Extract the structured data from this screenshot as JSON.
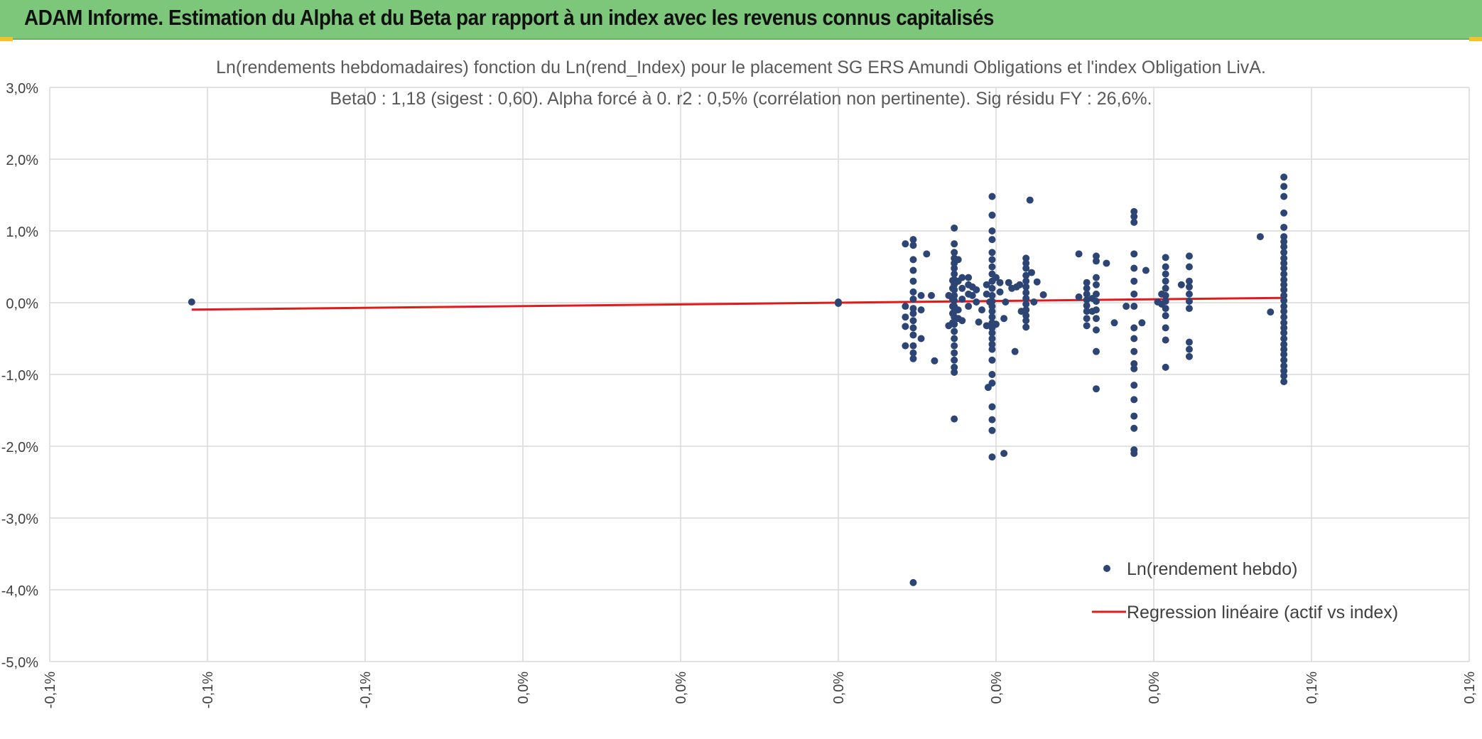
{
  "header": {
    "title": "ADAM Informe. Estimation du Alpha et du Beta par rapport à un index avec les revenus connus capitalisés"
  },
  "colors": {
    "header_bg": "#7dc77b",
    "point": "#2d4575",
    "regression": "#e01b1b",
    "grid": "#d9d9d9",
    "corner_accent": "#f2c230"
  },
  "chart_data": {
    "type": "scatter",
    "title": "Ln(rendements hebdomadaires) fonction du Ln(rend_Index) pour le placement SG ERS Amundi Obligations et l'index Obligation LivA.",
    "subtitle": "Beta0 : 1,18 (sigest : 0,60). Alpha forcé à 0. r2 : 0,5% (corrélation non pertinente). Sig résidu FY : 26,6%.",
    "xlabel": "",
    "ylabel": "",
    "xlim": [
      -0.001,
      0.0008
    ],
    "ylim": [
      -0.05,
      0.03
    ],
    "grid": true,
    "legend_position": "bottom-right",
    "x_tick_values": [
      -0.001,
      -0.0008,
      -0.0006,
      -0.0004,
      -0.0002,
      0.0,
      0.0002,
      0.0004,
      0.0006,
      0.0008
    ],
    "x_tick_labels": [
      "-0,1%",
      "-0,1%",
      "-0,1%",
      "0,0%",
      "0,0%",
      "0,0%",
      "0,0%",
      "0,0%",
      "0,1%",
      "0,1%"
    ],
    "y_tick_values": [
      0.03,
      0.02,
      0.01,
      0.0,
      -0.01,
      -0.02,
      -0.03,
      -0.04,
      -0.05
    ],
    "y_tick_labels": [
      "3,0%",
      "2,0%",
      "1,0%",
      "0,0%",
      "-1,0%",
      "-2,0%",
      "-3,0%",
      "-4,0%",
      "-5,0%"
    ],
    "series": [
      {
        "name": "Ln(rendement hebdo)",
        "kind": "points",
        "points": [
          [
            -0.00082,
            0.0001
          ],
          [
            0.0,
            0.0001
          ],
          [
            0.0,
            0.0
          ],
          [
            0.0,
            -0.0001
          ],
          [
            9.5e-05,
            0.008
          ],
          [
            9.5e-05,
            0.0088
          ],
          [
            9.5e-05,
            0.006
          ],
          [
            9.5e-05,
            0.0045
          ],
          [
            9.5e-05,
            0.003
          ],
          [
            9.5e-05,
            0.0015
          ],
          [
            9.5e-05,
            0.0005
          ],
          [
            9.5e-05,
            -0.0008
          ],
          [
            9.5e-05,
            -0.0015
          ],
          [
            9.5e-05,
            -0.0025
          ],
          [
            9.5e-05,
            -0.0035
          ],
          [
            9.5e-05,
            -0.0045
          ],
          [
            9.5e-05,
            -0.006
          ],
          [
            9.5e-05,
            -0.007
          ],
          [
            9.5e-05,
            -0.0078
          ],
          [
            9.5e-05,
            -0.039
          ],
          [
            8.5e-05,
            0.0082
          ],
          [
            8.5e-05,
            -0.0005
          ],
          [
            8.5e-05,
            -0.002
          ],
          [
            8.5e-05,
            -0.0033
          ],
          [
            8.5e-05,
            -0.006
          ],
          [
            0.000105,
            0.001
          ],
          [
            0.000105,
            -0.001
          ],
          [
            0.000105,
            -0.005
          ],
          [
            0.000112,
            0.0068
          ],
          [
            0.000118,
            0.001
          ],
          [
            0.000122,
            -0.0081
          ],
          [
            0.000145,
            0.0031
          ],
          [
            0.000145,
            0.002
          ],
          [
            0.000145,
            0.0005
          ],
          [
            0.000145,
            -0.0005
          ],
          [
            0.000145,
            -0.0015
          ],
          [
            0.000145,
            -0.0028
          ],
          [
            0.00014,
            0.001
          ],
          [
            0.00014,
            -0.0032
          ],
          [
            0.000147,
            0.0104
          ],
          [
            0.000147,
            0.0082
          ],
          [
            0.000147,
            0.007
          ],
          [
            0.000147,
            0.0062
          ],
          [
            0.000147,
            0.0055
          ],
          [
            0.000147,
            0.0048
          ],
          [
            0.000147,
            0.004
          ],
          [
            0.000147,
            0.0032
          ],
          [
            0.000147,
            0.0025
          ],
          [
            0.000147,
            0.0018
          ],
          [
            0.000147,
            0.001
          ],
          [
            0.000147,
            0.0003
          ],
          [
            0.000147,
            -0.0005
          ],
          [
            0.000147,
            -0.0012
          ],
          [
            0.000147,
            -0.002
          ],
          [
            0.000147,
            -0.003
          ],
          [
            0.000147,
            -0.004
          ],
          [
            0.000147,
            -0.005
          ],
          [
            0.000147,
            -0.006
          ],
          [
            0.000147,
            -0.007
          ],
          [
            0.000147,
            -0.008
          ],
          [
            0.000147,
            -0.009
          ],
          [
            0.000147,
            -0.0097
          ],
          [
            0.000147,
            -0.0162
          ],
          [
            0.000152,
            0.006
          ],
          [
            0.000152,
            0.003
          ],
          [
            0.000152,
            -0.001
          ],
          [
            0.000152,
            -0.0022
          ],
          [
            0.000157,
            0.0035
          ],
          [
            0.000157,
            0.002
          ],
          [
            0.000157,
            0.0005
          ],
          [
            0.000157,
            -0.0025
          ],
          [
            0.000165,
            0.0035
          ],
          [
            0.000165,
            0.0025
          ],
          [
            0.000165,
            0.0012
          ],
          [
            0.000165,
            -0.0005
          ],
          [
            0.00017,
            0.0022
          ],
          [
            0.00017,
            0.001
          ],
          [
            0.000175,
            0.0018
          ],
          [
            0.000175,
            0.0001
          ],
          [
            0.000178,
            -0.0027
          ],
          [
            0.000182,
            -0.001
          ],
          [
            0.000188,
            0.0025
          ],
          [
            0.000188,
            0.0012
          ],
          [
            0.000188,
            -0.0032
          ],
          [
            0.000192,
            0.0001
          ],
          [
            0.000195,
            0.0148
          ],
          [
            0.000195,
            0.0122
          ],
          [
            0.000195,
            0.01
          ],
          [
            0.000195,
            0.0088
          ],
          [
            0.000195,
            0.007
          ],
          [
            0.000195,
            0.006
          ],
          [
            0.000195,
            0.005
          ],
          [
            0.000195,
            0.004
          ],
          [
            0.000195,
            0.003
          ],
          [
            0.000195,
            0.002
          ],
          [
            0.000195,
            0.001
          ],
          [
            0.000195,
            0.0002
          ],
          [
            0.000195,
            -0.0005
          ],
          [
            0.000195,
            -0.0012
          ],
          [
            0.000195,
            -0.002
          ],
          [
            0.000195,
            -0.0028
          ],
          [
            0.000195,
            -0.0035
          ],
          [
            0.000195,
            -0.0042
          ],
          [
            0.000195,
            -0.005
          ],
          [
            0.000195,
            -0.0058
          ],
          [
            0.000195,
            -0.0065
          ],
          [
            0.000195,
            -0.008
          ],
          [
            0.000195,
            -0.01
          ],
          [
            0.000195,
            -0.0112
          ],
          [
            0.000195,
            -0.0145
          ],
          [
            0.000195,
            -0.0163
          ],
          [
            0.000195,
            -0.0178
          ],
          [
            0.000195,
            -0.0215
          ],
          [
            0.00019,
            -0.0118
          ],
          [
            0.0002,
            0.0035
          ],
          [
            0.0002,
            -0.003
          ],
          [
            0.000205,
            0.0028
          ],
          [
            0.000205,
            0.0015
          ],
          [
            0.00021,
            -0.021
          ],
          [
            0.00021,
            -0.0022
          ],
          [
            0.000212,
            0.0001
          ],
          [
            0.000216,
            0.0028
          ],
          [
            0.00022,
            0.002
          ],
          [
            0.000224,
            -0.0068
          ],
          [
            0.000226,
            0.0022
          ],
          [
            0.00023,
            0.0025
          ],
          [
            0.000232,
            -0.0012
          ],
          [
            0.000238,
            0.0062
          ],
          [
            0.000238,
            0.0055
          ],
          [
            0.000238,
            0.0048
          ],
          [
            0.000238,
            0.0038
          ],
          [
            0.000238,
            0.003
          ],
          [
            0.000238,
            0.0022
          ],
          [
            0.000238,
            0.0014
          ],
          [
            0.000238,
            0.0006
          ],
          [
            0.000238,
            -0.0002
          ],
          [
            0.000238,
            -0.001
          ],
          [
            0.000238,
            -0.0018
          ],
          [
            0.000238,
            -0.0025
          ],
          [
            0.000238,
            -0.0034
          ],
          [
            0.000238,
            -0.001
          ],
          [
            0.000243,
            0.0143
          ],
          [
            0.000245,
            0.0042
          ],
          [
            0.000248,
            0.0001
          ],
          [
            0.000252,
            0.0029
          ],
          [
            0.00026,
            0.0011
          ],
          [
            0.000305,
            0.0068
          ],
          [
            0.000305,
            0.0008
          ],
          [
            0.000315,
            0.0028
          ],
          [
            0.000315,
            0.002
          ],
          [
            0.000315,
            0.0012
          ],
          [
            0.000315,
            0.0004
          ],
          [
            0.000315,
            -0.0004
          ],
          [
            0.000315,
            -0.0012
          ],
          [
            0.000315,
            -0.0022
          ],
          [
            0.000315,
            -0.0032
          ],
          [
            0.000322,
            0.0006
          ],
          [
            0.000322,
            -0.0012
          ],
          [
            0.000327,
            0.0065
          ],
          [
            0.000327,
            0.0058
          ],
          [
            0.000327,
            0.0035
          ],
          [
            0.000327,
            0.0025
          ],
          [
            0.000327,
            0.0012
          ],
          [
            0.000327,
            0.0002
          ],
          [
            0.000327,
            -0.001
          ],
          [
            0.000327,
            -0.0022
          ],
          [
            0.000327,
            -0.0038
          ],
          [
            0.000327,
            -0.0068
          ],
          [
            0.000327,
            -0.012
          ],
          [
            0.00034,
            0.0055
          ],
          [
            0.00035,
            -0.0028
          ],
          [
            0.000365,
            -0.0005
          ],
          [
            0.000375,
            0.0127
          ],
          [
            0.000375,
            0.012
          ],
          [
            0.000375,
            0.0112
          ],
          [
            0.000375,
            0.0068
          ],
          [
            0.000375,
            0.0048
          ],
          [
            0.000375,
            0.003
          ],
          [
            0.000375,
            0.0012
          ],
          [
            0.000375,
            -0.0005
          ],
          [
            0.000375,
            -0.0035
          ],
          [
            0.000375,
            -0.005
          ],
          [
            0.000375,
            -0.0068
          ],
          [
            0.000375,
            -0.0085
          ],
          [
            0.000375,
            -0.0092
          ],
          [
            0.000375,
            -0.0115
          ],
          [
            0.000375,
            -0.0135
          ],
          [
            0.000375,
            -0.0158
          ],
          [
            0.000375,
            -0.0175
          ],
          [
            0.000375,
            -0.0205
          ],
          [
            0.000375,
            -0.021
          ],
          [
            0.000385,
            -0.0028
          ],
          [
            0.00039,
            0.0045
          ],
          [
            0.000405,
            0.0001
          ],
          [
            0.000415,
            0.0063
          ],
          [
            0.000415,
            0.005
          ],
          [
            0.000415,
            0.004
          ],
          [
            0.000415,
            0.003
          ],
          [
            0.000415,
            0.002
          ],
          [
            0.000415,
            0.001
          ],
          [
            0.000415,
            0.0002
          ],
          [
            0.000415,
            -0.0008
          ],
          [
            0.000415,
            -0.0018
          ],
          [
            0.000415,
            -0.0035
          ],
          [
            0.000415,
            -0.0052
          ],
          [
            0.000415,
            -0.009
          ],
          [
            0.00041,
            0.0012
          ],
          [
            0.00041,
            -0.0002
          ],
          [
            0.000435,
            0.0025
          ],
          [
            0.000445,
            0.0065
          ],
          [
            0.000445,
            0.005
          ],
          [
            0.000445,
            0.003
          ],
          [
            0.000445,
            0.0022
          ],
          [
            0.000445,
            0.0012
          ],
          [
            0.000445,
            0.0002
          ],
          [
            0.000445,
            -0.0008
          ],
          [
            0.000445,
            -0.0055
          ],
          [
            0.000445,
            -0.0065
          ],
          [
            0.000445,
            -0.0075
          ],
          [
            0.000535,
            0.0092
          ],
          [
            0.000548,
            -0.0013
          ],
          [
            0.000565,
            0.0175
          ],
          [
            0.000565,
            0.0162
          ],
          [
            0.000565,
            0.0148
          ],
          [
            0.000565,
            0.0125
          ],
          [
            0.000565,
            0.0105
          ],
          [
            0.000565,
            0.0092
          ],
          [
            0.000565,
            0.0085
          ],
          [
            0.000565,
            0.0078
          ],
          [
            0.000565,
            0.007
          ],
          [
            0.000565,
            0.0062
          ],
          [
            0.000565,
            0.0055
          ],
          [
            0.000565,
            0.0048
          ],
          [
            0.000565,
            0.004
          ],
          [
            0.000565,
            0.0032
          ],
          [
            0.000565,
            0.0025
          ],
          [
            0.000565,
            0.0018
          ],
          [
            0.000565,
            0.001
          ],
          [
            0.000565,
            0.0003
          ],
          [
            0.000565,
            -0.0005
          ],
          [
            0.000565,
            -0.0012
          ],
          [
            0.000565,
            -0.002
          ],
          [
            0.000565,
            -0.0028
          ],
          [
            0.000565,
            -0.0035
          ],
          [
            0.000565,
            -0.0042
          ],
          [
            0.000565,
            -0.005
          ],
          [
            0.000565,
            -0.0058
          ],
          [
            0.000565,
            -0.0065
          ],
          [
            0.000565,
            -0.0072
          ],
          [
            0.000565,
            -0.008
          ],
          [
            0.000565,
            -0.0088
          ],
          [
            0.000565,
            -0.0095
          ],
          [
            0.000565,
            -0.0102
          ],
          [
            0.000565,
            -0.011
          ]
        ]
      },
      {
        "name": "Regression linéaire (actif vs index)",
        "kind": "line",
        "points": [
          [
            -0.00082,
            -0.00097
          ],
          [
            0.000565,
            0.00067
          ]
        ]
      }
    ]
  }
}
